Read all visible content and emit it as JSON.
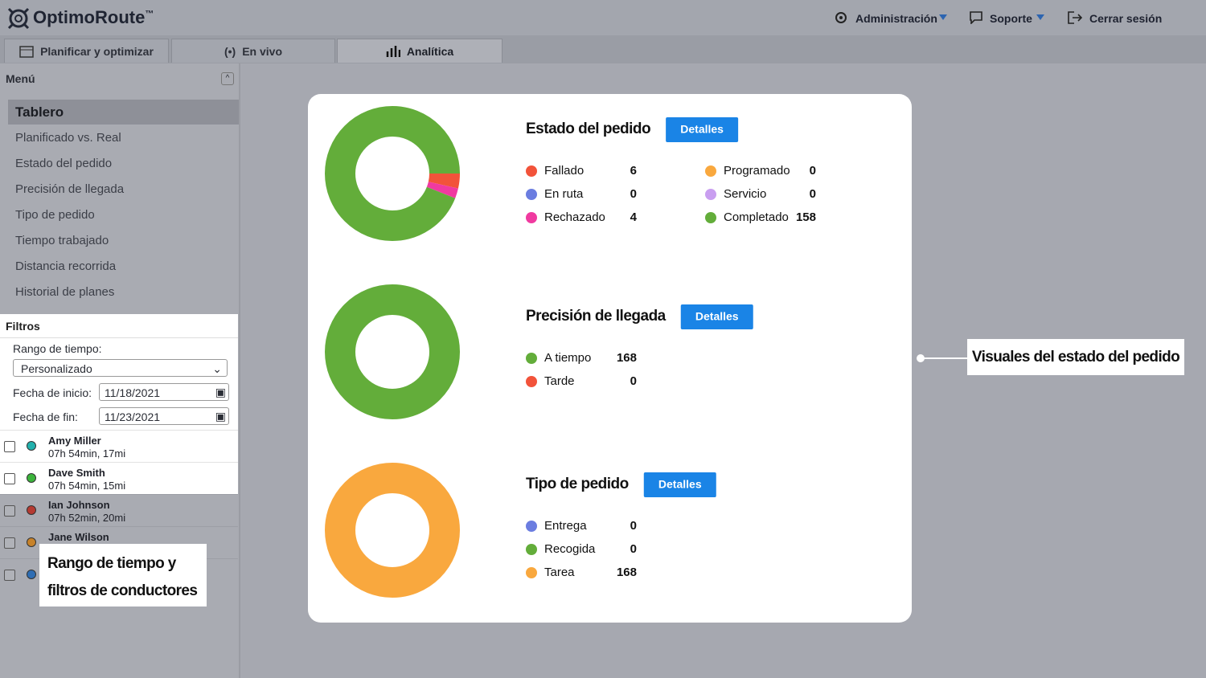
{
  "header": {
    "brand": "OptimoRoute",
    "trademark": "™",
    "nav": [
      "Administración",
      "Soporte",
      "Cerrar sesión"
    ]
  },
  "tabs": [
    "Planificar y optimizar",
    "En vivo",
    "Analítica"
  ],
  "sidebar": {
    "title": "Menú",
    "items": [
      "Tablero",
      "Planificado vs. Real",
      "Estado del pedido",
      "Precisión de llegada",
      "Tipo de pedido",
      "Tiempo trabajado",
      "Distancia recorrida",
      "Historial de planes"
    ]
  },
  "filters": {
    "title": "Filtros",
    "time_range_label": "Rango de tiempo:",
    "time_range": "Personalizado",
    "start_label": "Fecha de inicio:",
    "start": "11/18/2021",
    "end_label": "Fecha de fin:",
    "end": "11/23/2021"
  },
  "drivers": [
    {
      "name": "Amy Miller",
      "detail": "07h 54min, 17mi",
      "color": "#22b1ad"
    },
    {
      "name": "Dave Smith",
      "detail": "07h 54min, 15mi",
      "color": "#3cb43c"
    },
    {
      "name": "Ian Johnson",
      "detail": "07h 52min, 20mi",
      "color": "#b53a32"
    },
    {
      "name": "Jane Wilson",
      "color": "#c7822a"
    },
    {
      "color": "#2e6db3"
    }
  ],
  "panels": [
    {
      "title": "Estado del pedido",
      "button": "Detalles",
      "items": [
        {
          "label": "Fallado",
          "value": 6,
          "color": "#f2533a"
        },
        {
          "label": "En ruta",
          "value": 0,
          "color": "#6b7de0"
        },
        {
          "label": "Rechazado",
          "value": 4,
          "color": "#f03aa0"
        },
        {
          "label": "Programado",
          "value": 0,
          "color": "#f9a83e"
        },
        {
          "label": "Servicio",
          "value": 0,
          "color": "#c99ef0"
        },
        {
          "label": "Completado",
          "value": 158,
          "color": "#63ad3a"
        }
      ]
    },
    {
      "title": "Precisión de llegada",
      "button": "Detalles",
      "items": [
        {
          "label": "A tiempo",
          "value": 168,
          "color": "#63ad3a"
        },
        {
          "label": "Tarde",
          "value": 0,
          "color": "#f2533a"
        }
      ]
    },
    {
      "title": "Tipo de pedido",
      "button": "Detalles",
      "items": [
        {
          "label": "Entrega",
          "value": 0,
          "color": "#6b7de0"
        },
        {
          "label": "Recogida",
          "value": 0,
          "color": "#63ad3a"
        },
        {
          "label": "Tarea",
          "value": 168,
          "color": "#f9a83e"
        }
      ]
    }
  ],
  "callouts": {
    "panel": "Visuales del estado del pedido",
    "filters": [
      "Rango de tiempo y",
      "filtros de conductores"
    ]
  }
}
